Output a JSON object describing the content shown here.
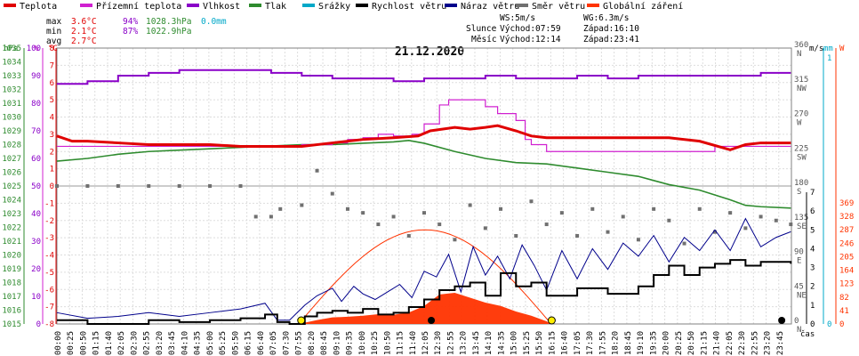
{
  "chart_data": {
    "type": "line",
    "title": "21.12.2020",
    "xlabel": "čas",
    "legend": [
      {
        "name": "Teplota",
        "color": "#e00000"
      },
      {
        "name": "Přízemní teplota",
        "color": "#d020d0"
      },
      {
        "name": "Vlhkost",
        "color": "#8a00c8"
      },
      {
        "name": "Tlak",
        "color": "#2e8b2e"
      },
      {
        "name": "Srážky",
        "color": "#00a8c8"
      },
      {
        "name": "Rychlost větru",
        "color": "#000000"
      },
      {
        "name": "Náraz větru",
        "color": "#00008b"
      },
      {
        "name": "Směr větru",
        "color": "#707070"
      },
      {
        "name": "Globální záření",
        "color": "#ff3300"
      }
    ],
    "stats": {
      "max": {
        "label": "max",
        "temp": "3.6°C",
        "hum": "94%",
        "press": "1028.3hPa",
        "rain": "0.0mm"
      },
      "min": {
        "label": "min",
        "temp": "2.1°C",
        "hum": "87%",
        "press": "1022.9hPa"
      },
      "avg": {
        "label": "avg",
        "temp": "2.7°C"
      },
      "ws": "WS:5m/s",
      "wg": "WG:6.3m/s",
      "sun": {
        "label": "Slunce",
        "rise": "Východ:07:59",
        "set": "Západ:16:10"
      },
      "moon": {
        "label": "Měsíc",
        "rise": "Východ:12:14",
        "set": "Západ:23:41"
      }
    },
    "axes": {
      "hpa": {
        "label": "hPa",
        "min": 1015,
        "max": 1035,
        "ticks": [
          1015,
          1016,
          1017,
          1018,
          1019,
          1020,
          1021,
          1022,
          1023,
          1024,
          1025,
          1026,
          1027,
          1028,
          1029,
          1030,
          1031,
          1032,
          1033,
          1034,
          1035
        ]
      },
      "pct": {
        "label": "%",
        "min": 0,
        "max": 100,
        "ticks": [
          0,
          10,
          20,
          30,
          40,
          50,
          60,
          70,
          80,
          90,
          100
        ]
      },
      "degc": {
        "label": "°C",
        "min": -8,
        "max": 8,
        "ticks": [
          -8,
          -7,
          -6,
          -5,
          -4,
          -3,
          -2,
          -1,
          0,
          1,
          2,
          3,
          4,
          5,
          6,
          7,
          8
        ]
      },
      "dir": {
        "ticks": [
          {
            "v": 0,
            "t": "0",
            "c": "N"
          },
          {
            "v": 45,
            "t": "45",
            "c": "NE"
          },
          {
            "v": 90,
            "t": "90",
            "c": "E"
          },
          {
            "v": 135,
            "t": "135",
            "c": "SE"
          },
          {
            "v": 180,
            "t": "180",
            "c": "S"
          },
          {
            "v": 225,
            "t": "225",
            "c": "SW"
          },
          {
            "v": 270,
            "t": "270",
            "c": "W"
          },
          {
            "v": 315,
            "t": "315",
            "c": "NW"
          },
          {
            "v": 360,
            "t": "360",
            "c": "N"
          }
        ]
      },
      "ms": {
        "label": "m/s",
        "min": 0,
        "max": 7,
        "ticks": [
          0,
          1,
          2,
          3,
          4,
          5,
          6,
          7
        ]
      },
      "mm": {
        "label": "mm",
        "top": "1",
        "bottom": "0"
      },
      "w": {
        "label": "W",
        "min": 0,
        "max": 369,
        "ticks": [
          0,
          41,
          82,
          123,
          164,
          205,
          246,
          287,
          328,
          369
        ]
      }
    },
    "x_ticks": [
      "00:00",
      "00:25",
      "00:50",
      "01:15",
      "01:40",
      "02:05",
      "02:30",
      "02:55",
      "03:20",
      "03:45",
      "04:10",
      "04:35",
      "05:00",
      "05:25",
      "05:50",
      "06:15",
      "06:40",
      "07:05",
      "07:30",
      "07:55",
      "08:20",
      "08:45",
      "09:10",
      "09:35",
      "10:00",
      "10:25",
      "10:50",
      "11:15",
      "11:40",
      "12:05",
      "12:30",
      "12:55",
      "13:20",
      "13:45",
      "14:10",
      "14:35",
      "15:00",
      "15:25",
      "15:50",
      "16:15",
      "16:40",
      "17:05",
      "17:30",
      "17:55",
      "18:20",
      "18:45",
      "19:10",
      "19:35",
      "20:00",
      "20:25",
      "20:50",
      "21:15",
      "21:40",
      "22:05",
      "22:30",
      "22:55",
      "23:20",
      "23:45"
    ],
    "series": [
      {
        "name": "Teplota",
        "unit": "°C",
        "x": [
          0,
          0.5,
          1,
          2,
          3,
          4,
          5,
          6,
          7,
          8,
          9,
          10,
          11,
          11.8,
          12.2,
          13,
          13.5,
          14,
          14.4,
          15,
          15.5,
          16,
          16.5,
          17,
          18,
          19,
          20,
          21,
          22,
          22.5,
          23,
          23.98
        ],
        "y": [
          2.9,
          2.6,
          2.6,
          2.5,
          2.4,
          2.4,
          2.4,
          2.3,
          2.3,
          2.3,
          2.5,
          2.7,
          2.8,
          2.9,
          3.2,
          3.4,
          3.3,
          3.4,
          3.5,
          3.2,
          2.9,
          2.8,
          2.8,
          2.8,
          2.8,
          2.8,
          2.8,
          2.6,
          2.1,
          2.4,
          2.5,
          2.5
        ]
      },
      {
        "name": "Přízemní teplota",
        "unit": "°C",
        "x": [
          0,
          1,
          2,
          3,
          4,
          5,
          6,
          7,
          8,
          9,
          9.5,
          10,
          10.5,
          11,
          11.6,
          12,
          12.5,
          12.8,
          13.5,
          14,
          14.4,
          15,
          15.3,
          15.5,
          16,
          16.5,
          17,
          18,
          19,
          20,
          21,
          21.5,
          22,
          23,
          23.98
        ],
        "y": [
          2.3,
          2.3,
          2.3,
          2.3,
          2.3,
          2.3,
          2.3,
          2.3,
          2.4,
          2.5,
          2.7,
          2.8,
          3.0,
          2.9,
          3.0,
          3.6,
          4.7,
          5.0,
          5.0,
          4.6,
          4.2,
          3.8,
          2.7,
          2.4,
          2.0,
          2.0,
          2.0,
          2.0,
          2.0,
          2.0,
          2.0,
          2.3,
          2.3,
          2.3,
          2.3
        ]
      },
      {
        "name": "Vlhkost",
        "unit": "%",
        "x": [
          0,
          1,
          2,
          3,
          4,
          5,
          6,
          7,
          8,
          9,
          10,
          11,
          12,
          13,
          14,
          15,
          16,
          17,
          18,
          19,
          20,
          21,
          22,
          23,
          23.98
        ],
        "y": [
          87,
          88,
          90,
          91,
          92,
          92,
          92,
          91,
          90,
          89,
          89,
          88,
          89,
          89,
          90,
          89,
          89,
          90,
          89,
          90,
          90,
          90,
          90,
          91,
          91
        ]
      },
      {
        "name": "Tlak",
        "unit": "hPa",
        "x": [
          0,
          1,
          2,
          3,
          4,
          5,
          6,
          7,
          8,
          9,
          10,
          11,
          11.5,
          12,
          13,
          14,
          15,
          16,
          17,
          18,
          19,
          19.5,
          20,
          21,
          22,
          22.5,
          23,
          23.98
        ],
        "y": [
          1026.8,
          1027.0,
          1027.3,
          1027.5,
          1027.6,
          1027.7,
          1027.8,
          1027.9,
          1028.0,
          1028.0,
          1028.1,
          1028.2,
          1028.3,
          1028.1,
          1027.5,
          1027.0,
          1026.7,
          1026.6,
          1026.3,
          1026.0,
          1025.7,
          1025.4,
          1025.1,
          1024.7,
          1024.0,
          1023.6,
          1023.5,
          1023.4
        ]
      },
      {
        "name": "Rychlost větru",
        "unit": "m/s",
        "x": [
          0,
          1,
          2,
          3,
          4,
          5,
          6,
          6.8,
          7.2,
          7.6,
          8.1,
          8.5,
          9,
          9.5,
          10,
          10.5,
          11,
          11.5,
          12,
          12.5,
          13,
          13.5,
          14,
          14.5,
          15,
          15.5,
          16,
          17,
          18,
          19,
          19.5,
          20,
          20.5,
          21,
          21.5,
          22,
          22.5,
          23,
          23.5,
          23.98
        ],
        "y": [
          0.2,
          0.0,
          0.0,
          0.2,
          0.1,
          0.2,
          0.3,
          0.5,
          0.1,
          0.0,
          0.4,
          0.6,
          0.7,
          0.6,
          0.8,
          0.5,
          0.6,
          0.9,
          1.3,
          1.8,
          2.0,
          2.2,
          1.5,
          2.7,
          2.0,
          2.2,
          1.5,
          1.9,
          1.6,
          2.0,
          2.6,
          3.1,
          2.6,
          3.0,
          3.2,
          3.4,
          3.1,
          3.3,
          3.3,
          3.2
        ]
      },
      {
        "name": "Náraz větru",
        "unit": "m/s",
        "x": [
          0,
          1,
          2,
          3,
          4,
          5,
          6,
          6.8,
          7.2,
          7.6,
          8.1,
          8.5,
          9,
          9.3,
          9.7,
          10,
          10.4,
          10.8,
          11.2,
          11.6,
          12,
          12.4,
          12.8,
          13.2,
          13.6,
          14,
          14.4,
          14.8,
          15.2,
          15.6,
          16,
          16.5,
          17,
          17.5,
          18,
          18.5,
          19,
          19.5,
          20,
          20.5,
          21,
          21.5,
          22,
          22.5,
          23,
          23.5,
          23.98
        ],
        "y": [
          0.6,
          0.3,
          0.4,
          0.6,
          0.4,
          0.6,
          0.8,
          1.1,
          0.2,
          0.2,
          1.0,
          1.5,
          1.9,
          1.2,
          2.0,
          1.6,
          1.3,
          1.7,
          2.1,
          1.4,
          2.8,
          2.5,
          3.7,
          1.7,
          4.1,
          2.6,
          3.6,
          2.4,
          4.2,
          3.1,
          1.8,
          3.9,
          2.4,
          4.0,
          2.9,
          4.3,
          3.6,
          4.7,
          3.3,
          4.6,
          3.9,
          5.0,
          3.9,
          5.6,
          4.1,
          4.6,
          4.9
        ]
      },
      {
        "name": "Směr větru",
        "unit": "°",
        "x": [
          0,
          1,
          2,
          3,
          4,
          5,
          6,
          6.5,
          7,
          7.3,
          8,
          8.5,
          9,
          9.5,
          10,
          10.5,
          11,
          11.5,
          12,
          12.5,
          13,
          13.5,
          14,
          14.5,
          15,
          15.5,
          16,
          16.5,
          17,
          17.5,
          18,
          18.5,
          19,
          19.5,
          20,
          20.5,
          21,
          21.5,
          22,
          22.5,
          23,
          23.5,
          23.98
        ],
        "y": [
          180,
          180,
          180,
          180,
          180,
          180,
          180,
          140,
          140,
          150,
          155,
          200,
          170,
          150,
          145,
          130,
          140,
          115,
          145,
          130,
          110,
          155,
          125,
          150,
          115,
          160,
          130,
          145,
          115,
          150,
          120,
          140,
          110,
          150,
          135,
          105,
          150,
          120,
          145,
          125,
          140,
          135,
          130
        ]
      },
      {
        "name": "Globální záření",
        "unit": "W/m²",
        "x": [
          7.9,
          8.5,
          9,
          9.5,
          10,
          10.5,
          11,
          11.5,
          12,
          12.5,
          13,
          13.5,
          14,
          14.5,
          15,
          15.5,
          16,
          16.15
        ],
        "y": [
          0,
          12,
          20,
          22,
          25,
          30,
          28,
          35,
          55,
          90,
          95,
          80,
          65,
          55,
          38,
          25,
          8,
          0
        ]
      }
    ],
    "sunrise_marker": "07:59",
    "sunset_marker": "16:10"
  }
}
